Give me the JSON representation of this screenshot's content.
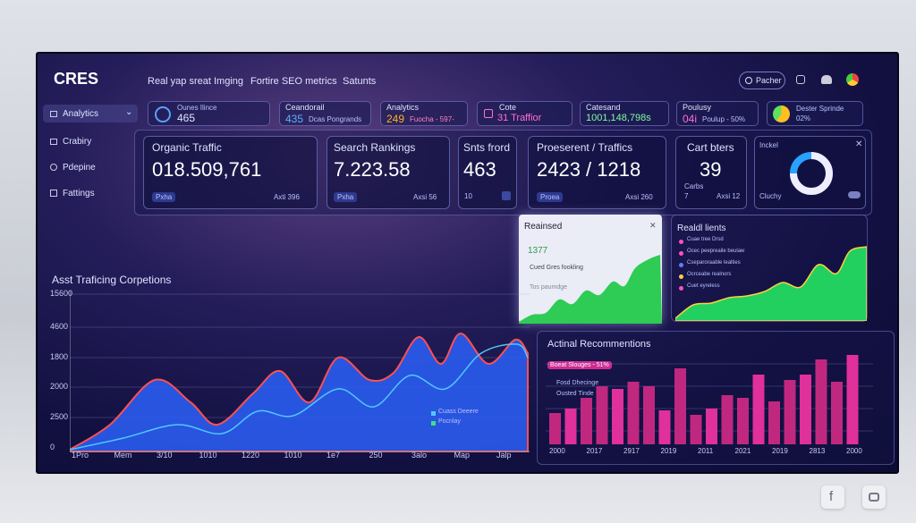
{
  "header": {
    "logo": "CRES",
    "nav": [
      "Real yap sreat Imging",
      "Fortire SEO metrics",
      "Satunts"
    ],
    "search": "Pacher"
  },
  "sidebar": [
    "Analytics",
    "Crabiry",
    "Pdepine",
    "Fattings"
  ],
  "chips": [
    {
      "label": "Ounes Ilince",
      "value": "465"
    },
    {
      "label": "Ceandorail",
      "value": "435",
      "sub": "Dcas Pongrands"
    },
    {
      "label": "Analytics",
      "value": "249",
      "sub": "Fuocha - 597-"
    },
    {
      "label": "Cote",
      "value": "31 Traffior"
    },
    {
      "label": "Catesand",
      "value": "1001,148,798s"
    },
    {
      "label": "Poulusy",
      "value": "04i",
      "sub": "Poulup - 50%"
    },
    {
      "label": "Dester Sprinde",
      "value": "02%"
    }
  ],
  "cards": [
    {
      "title": "Organic Traffic",
      "value": "018.509,761",
      "tag": "Pxha",
      "note": "Axti 396"
    },
    {
      "title": "Search Rankings",
      "value": "7.223.58",
      "tag": "Pxha",
      "note": "Axsi 56"
    },
    {
      "title": "Snts frord",
      "value": "463",
      "tag": "10"
    },
    {
      "title": "Proeserent / Traffics",
      "value": "2423 / 1218",
      "tag": "Proea",
      "note": "Axsi 260"
    },
    {
      "title": "Cart bters",
      "value": "39",
      "tag": "Carbs",
      "extra": "7",
      "note": "Axsi 12"
    },
    {
      "title": "Inckel",
      "tag": "Cluchy"
    }
  ],
  "popup": {
    "title": "Reainsed",
    "value": "1377",
    "line1": "Cued Gres fookling",
    "line2": "Tos paumdge"
  },
  "realtime": {
    "title": "Realdl lients",
    "items": [
      "Cuae tree Drsd",
      "Ocec peepreaile beulaw",
      "Cseparoraable lealties",
      "Ocrceabe realnors",
      "Cuet eyreless"
    ]
  },
  "traffic": {
    "title": "Asst Traficing Corpetions",
    "y_labels": [
      "15600",
      "4600",
      "1800",
      "2000",
      "2500",
      "0"
    ],
    "x_labels": [
      "1Pro",
      "Mem",
      "3/10",
      "1010",
      "1220",
      "1010",
      "1e7",
      "250",
      "3alo",
      "Map",
      "Jalp"
    ],
    "legend": [
      "Cuass Deeere",
      "Pocnlay"
    ]
  },
  "recommendations": {
    "title": "Actinal Recommentions",
    "legend": [
      "Boeat Slouges - 51%",
      "Fosd Dhecinge",
      "Ousted Tinde"
    ],
    "x_labels": [
      "2000",
      "2017",
      "2917",
      "2019",
      "2011",
      "2021",
      "2019",
      "2813",
      "2000"
    ]
  },
  "social": [
    "f"
  ]
}
